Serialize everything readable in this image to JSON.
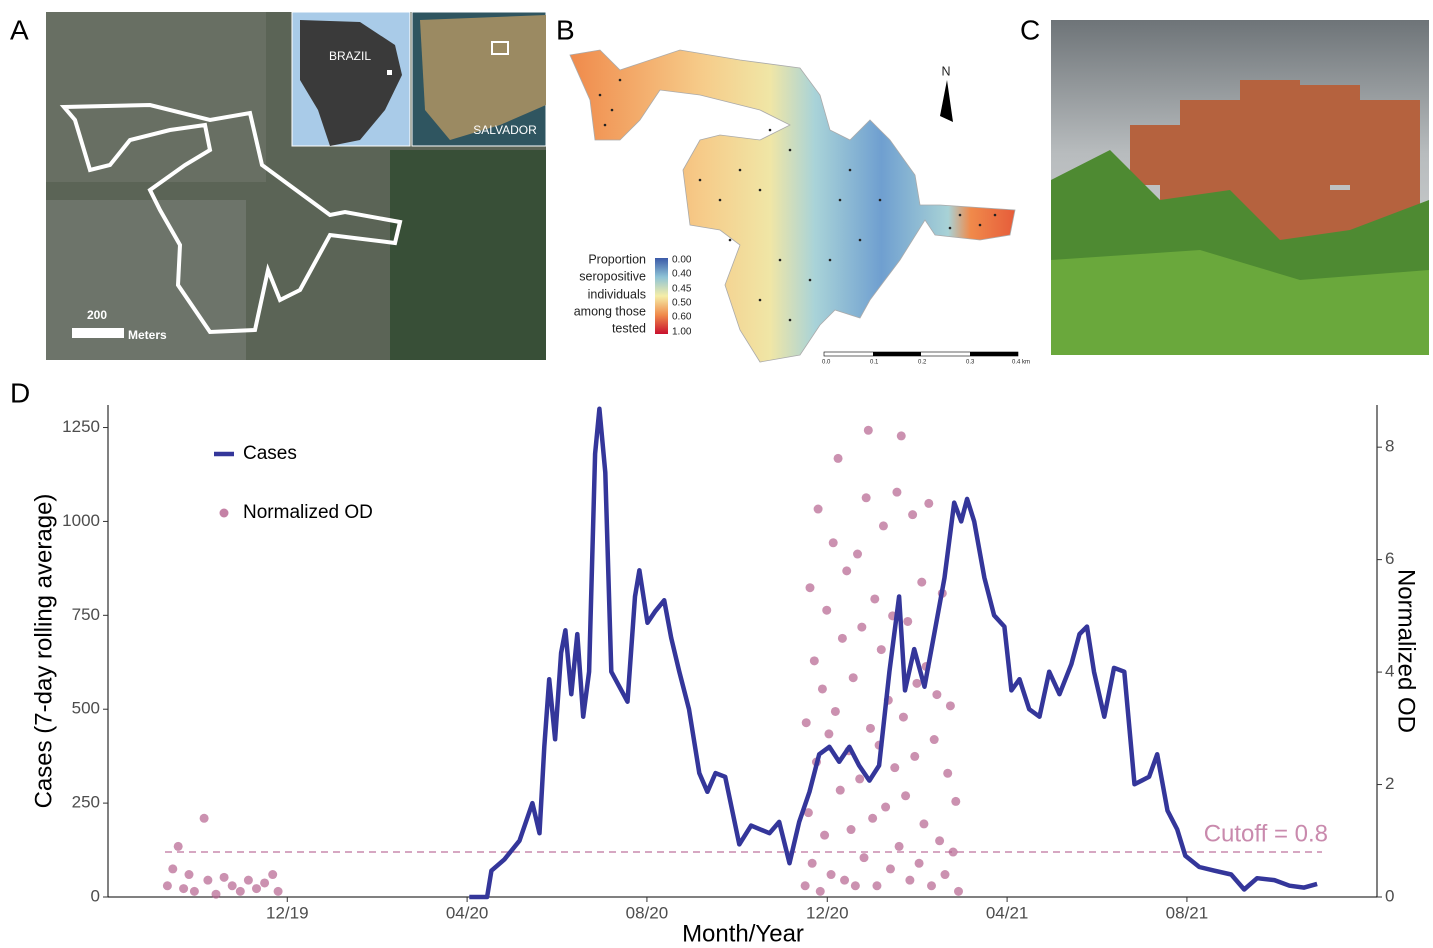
{
  "figure": {
    "panel_labels": [
      "A",
      "B",
      "C",
      "D"
    ],
    "panel_a": {
      "inset_country": "BRAZIL",
      "inset_city": "SALVADOR",
      "scale_value": "200",
      "scale_unit": "Meters"
    },
    "panel_b": {
      "north": "N",
      "legend_lines": [
        "Proportion",
        "seropositive",
        "individuals",
        "among those",
        "tested"
      ],
      "colorbar_labels": [
        "0.00",
        "0.40",
        "0.45",
        "0.50",
        "0.60",
        "1.00"
      ],
      "scalebar_labels": [
        "0.0",
        "0.1",
        "0.2",
        "0.3",
        "0.4 km"
      ]
    }
  },
  "chart_data": {
    "type": "line",
    "x_label": "Month/Year",
    "y_label": "Cases (7-day rolling average)",
    "y2_label": "Normalized OD",
    "xlim": [
      2019.585,
      2021.935
    ],
    "xticks": [
      {
        "value": 2019.917,
        "label": "12/19"
      },
      {
        "value": 2020.25,
        "label": "04/20"
      },
      {
        "value": 2020.583,
        "label": "08/20"
      },
      {
        "value": 2020.917,
        "label": "12/20"
      },
      {
        "value": 2021.25,
        "label": "04/21"
      },
      {
        "value": 2021.583,
        "label": "08/21"
      }
    ],
    "ylim": [
      0,
      1310
    ],
    "yticks": [
      0,
      250,
      500,
      750,
      1000,
      1250
    ],
    "y2lim": [
      0,
      8.75
    ],
    "y2ticks": [
      0,
      2,
      4,
      6,
      8
    ],
    "annotations": [
      {
        "text": "Cutoff = 0.8",
        "y": 0.8,
        "axis": "y2",
        "color": "#c98aad"
      }
    ],
    "series": [
      {
        "name": "Cases",
        "type": "line",
        "color": "#34369a",
        "x": [
          2020.254,
          2020.287,
          2020.295,
          2020.319,
          2020.347,
          2020.371,
          2020.384,
          2020.393,
          2020.402,
          2020.413,
          2020.424,
          2020.432,
          2020.443,
          2020.454,
          2020.465,
          2020.476,
          2020.487,
          2020.495,
          2020.506,
          2020.517,
          2020.532,
          2020.547,
          2020.561,
          2020.569,
          2020.584,
          2020.598,
          2020.615,
          2020.628,
          2020.643,
          2020.661,
          2020.68,
          2020.695,
          2020.71,
          2020.728,
          2020.754,
          2020.776,
          2020.81,
          2020.828,
          2020.847,
          2020.865,
          2020.884,
          2020.902,
          2020.921,
          2020.939,
          2020.958,
          2020.976,
          2020.995,
          2021.013,
          2021.032,
          2021.05,
          2021.061,
          2021.078,
          2021.097,
          2021.115,
          2021.134,
          2021.152,
          2021.165,
          2021.176,
          2021.189,
          2021.208,
          2021.226,
          2021.245,
          2021.258,
          2021.273,
          2021.291,
          2021.31,
          2021.328,
          2021.347,
          2021.369,
          2021.384,
          2021.398,
          2021.411,
          2021.43,
          2021.448,
          2021.467,
          2021.486,
          2021.513,
          2021.528,
          2021.547,
          2021.565,
          2021.58,
          2021.606,
          2021.634,
          2021.665,
          2021.689,
          2021.713,
          2021.745,
          2021.773,
          2021.8,
          2021.824
        ],
        "values": [
          0,
          0,
          70,
          100,
          150,
          250,
          170,
          400,
          580,
          420,
          650,
          710,
          540,
          700,
          480,
          600,
          1180,
          1300,
          1130,
          600,
          560,
          520,
          800,
          870,
          730,
          760,
          790,
          690,
          600,
          500,
          330,
          280,
          330,
          320,
          140,
          190,
          170,
          200,
          90,
          200,
          280,
          380,
          400,
          360,
          400,
          350,
          310,
          350,
          600,
          800,
          550,
          660,
          560,
          700,
          850,
          1050,
          1000,
          1060,
          1000,
          850,
          750,
          720,
          550,
          580,
          500,
          480,
          600,
          540,
          620,
          700,
          720,
          600,
          480,
          610,
          600,
          300,
          320,
          380,
          230,
          180,
          110,
          80,
          70,
          60,
          20,
          50,
          45,
          30,
          25,
          35
        ]
      },
      {
        "name": "Normalized OD",
        "type": "scatter",
        "axis": "y2",
        "color": "#b5628f",
        "x": [
          2019.695,
          2019.705,
          2019.715,
          2019.725,
          2019.735,
          2019.745,
          2019.763,
          2019.77,
          2019.785,
          2019.8,
          2019.815,
          2019.83,
          2019.845,
          2019.86,
          2019.875,
          2019.89,
          2019.9,
          2020.876,
          2020.878,
          2020.882,
          2020.885,
          2020.889,
          2020.893,
          2020.897,
          2020.9,
          2020.904,
          2020.908,
          2020.912,
          2020.916,
          2020.92,
          2020.924,
          2020.928,
          2020.932,
          2020.937,
          2020.941,
          2020.945,
          2020.949,
          2020.953,
          2020.957,
          2020.961,
          2020.965,
          2020.969,
          2020.973,
          2020.977,
          2020.981,
          2020.985,
          2020.989,
          2020.993,
          2020.997,
          2021.001,
          2021.005,
          2021.009,
          2021.013,
          2021.017,
          2021.021,
          2021.025,
          2021.03,
          2021.034,
          2021.038,
          2021.042,
          2021.046,
          2021.05,
          2021.054,
          2021.058,
          2021.062,
          2021.066,
          2021.07,
          2021.075,
          2021.079,
          2021.083,
          2021.087,
          2021.092,
          2021.096,
          2021.1,
          2021.105,
          2021.11,
          2021.115,
          2021.12,
          2021.125,
          2021.13,
          2021.135,
          2021.14,
          2021.145,
          2021.15,
          2021.155,
          2021.16
        ],
        "values": [
          0.2,
          0.5,
          0.9,
          0.15,
          0.4,
          0.1,
          1.4,
          0.3,
          0.05,
          0.35,
          0.2,
          0.1,
          0.3,
          0.15,
          0.25,
          0.4,
          0.1,
          0.2,
          3.1,
          1.5,
          5.5,
          0.6,
          4.2,
          2.4,
          6.9,
          0.1,
          3.7,
          1.1,
          5.1,
          2.9,
          0.4,
          6.3,
          3.3,
          7.8,
          1.9,
          4.6,
          0.3,
          5.8,
          2.6,
          1.2,
          3.9,
          0.2,
          6.1,
          2.1,
          4.8,
          0.7,
          7.1,
          8.3,
          3.0,
          1.4,
          5.3,
          0.2,
          2.7,
          4.4,
          6.6,
          1.6,
          3.5,
          0.5,
          5.0,
          2.3,
          7.2,
          0.9,
          8.2,
          3.2,
          1.8,
          4.9,
          0.3,
          6.8,
          2.5,
          3.8,
          0.6,
          5.6,
          1.3,
          4.1,
          7.0,
          0.2,
          2.8,
          3.6,
          1.0,
          5.4,
          0.4,
          2.2,
          3.4,
          0.8,
          1.7,
          0.1
        ]
      }
    ]
  }
}
